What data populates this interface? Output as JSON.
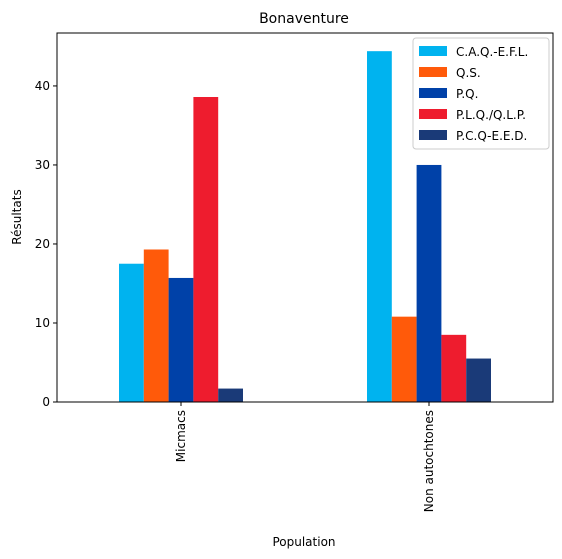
{
  "chart_data": {
    "type": "bar",
    "title": "Bonaventure",
    "xlabel": "Population",
    "ylabel": "Résultats",
    "categories": [
      "Micmacs",
      "Non autochtones"
    ],
    "ylim": [
      0,
      46.7
    ],
    "yticks": [
      0,
      10,
      20,
      30,
      40
    ],
    "grid": false,
    "legend_position": "top-right",
    "series": [
      {
        "name": "C.A.Q.-E.F.L.",
        "color": "#00b3ef",
        "values": [
          17.5,
          44.4
        ]
      },
      {
        "name": "Q.S.",
        "color": "#ff5a0a",
        "values": [
          19.3,
          10.8
        ]
      },
      {
        "name": "P.Q.",
        "color": "#0041a8",
        "values": [
          15.7,
          30.0
        ]
      },
      {
        "name": "P.L.Q./Q.L.P.",
        "color": "#ee1c2e",
        "values": [
          38.6,
          8.5
        ]
      },
      {
        "name": "P.C.Q-E.E.D.",
        "color": "#1a3a78",
        "values": [
          1.7,
          5.5
        ]
      }
    ]
  }
}
